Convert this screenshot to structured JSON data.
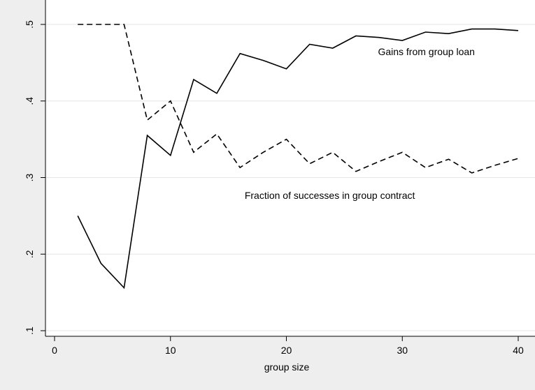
{
  "chart_data": {
    "type": "line",
    "title": "",
    "xlabel": "group size",
    "ylabel": "",
    "xlim": [
      0,
      40
    ],
    "ylim": [
      0.1,
      0.5
    ],
    "xticks": [
      0,
      10,
      20,
      30,
      40
    ],
    "xtick_labels": [
      "0",
      "10",
      "20",
      "30",
      "40"
    ],
    "yticks": [
      0.1,
      0.2,
      0.3,
      0.4,
      0.5
    ],
    "ytick_labels": [
      ".1",
      ".2",
      ".3",
      ".4",
      ".5"
    ],
    "grid": "horizontal",
    "legend": "none",
    "x": [
      2,
      4,
      6,
      8,
      10,
      12,
      14,
      16,
      18,
      20,
      22,
      24,
      26,
      28,
      30,
      32,
      34,
      36,
      38,
      40
    ],
    "series": [
      {
        "name": "Gains from group loan",
        "style": "solid",
        "color": "#000000",
        "values": [
          0.25,
          0.188,
          0.156,
          0.355,
          0.329,
          0.428,
          0.41,
          0.462,
          0.453,
          0.442,
          0.474,
          0.469,
          0.485,
          0.483,
          0.479,
          0.49,
          0.488,
          0.494,
          0.494,
          0.492
        ]
      },
      {
        "name": "Fraction of successes in group contract",
        "style": "dashed",
        "color": "#000000",
        "values": [
          0.5,
          0.5,
          0.5,
          0.375,
          0.4,
          0.333,
          0.357,
          0.313,
          0.333,
          0.35,
          0.318,
          0.333,
          0.308,
          0.321,
          0.333,
          0.313,
          0.324,
          0.306,
          0.316,
          0.325
        ]
      }
    ],
    "annotations": [
      {
        "text": "Gains from group loan",
        "x": 27.9,
        "y": 0.46
      },
      {
        "text": "Fraction of successes in group contract",
        "x": 16.4,
        "y": 0.272
      }
    ],
    "colors": {
      "background": "#eeeeee",
      "plot_background": "#ffffff",
      "grid": "#e6e6e6",
      "axis": "#000000"
    }
  }
}
